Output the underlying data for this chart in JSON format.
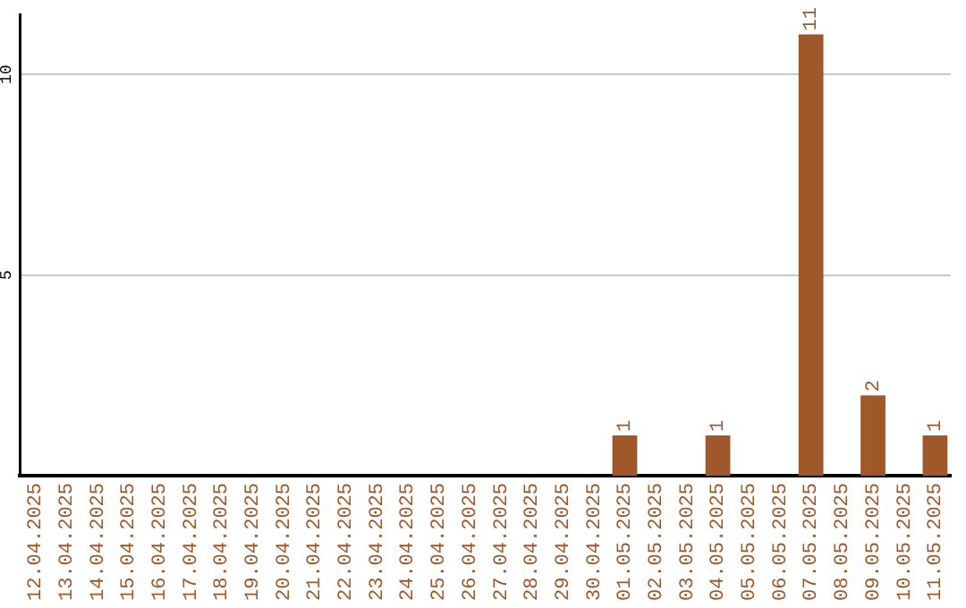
{
  "chart_data": {
    "type": "bar",
    "categories": [
      "12.04.2025",
      "13.04.2025",
      "14.04.2025",
      "15.04.2025",
      "16.04.2025",
      "17.04.2025",
      "18.04.2025",
      "19.04.2025",
      "20.04.2025",
      "21.04.2025",
      "22.04.2025",
      "23.04.2025",
      "24.04.2025",
      "25.04.2025",
      "26.04.2025",
      "27.04.2025",
      "28.04.2025",
      "29.04.2025",
      "30.04.2025",
      "01.05.2025",
      "02.05.2025",
      "03.05.2025",
      "04.05.2025",
      "05.05.2025",
      "06.05.2025",
      "07.05.2025",
      "08.05.2025",
      "09.05.2025",
      "10.05.2025",
      "11.05.2025"
    ],
    "values": [
      0,
      0,
      0,
      0,
      0,
      0,
      0,
      0,
      0,
      0,
      0,
      0,
      0,
      0,
      0,
      0,
      0,
      0,
      0,
      1,
      0,
      0,
      1,
      0,
      0,
      11,
      0,
      2,
      0,
      1
    ],
    "value_labels": [
      null,
      null,
      null,
      null,
      null,
      null,
      null,
      null,
      null,
      null,
      null,
      null,
      null,
      null,
      null,
      null,
      null,
      null,
      null,
      "1",
      null,
      null,
      "1",
      null,
      null,
      "11",
      null,
      "2",
      null,
      "1"
    ],
    "color": "#a0572a",
    "ylim": [
      0,
      11.5
    ],
    "yticks": [
      5,
      10
    ],
    "grid": "y",
    "legend": false
  }
}
